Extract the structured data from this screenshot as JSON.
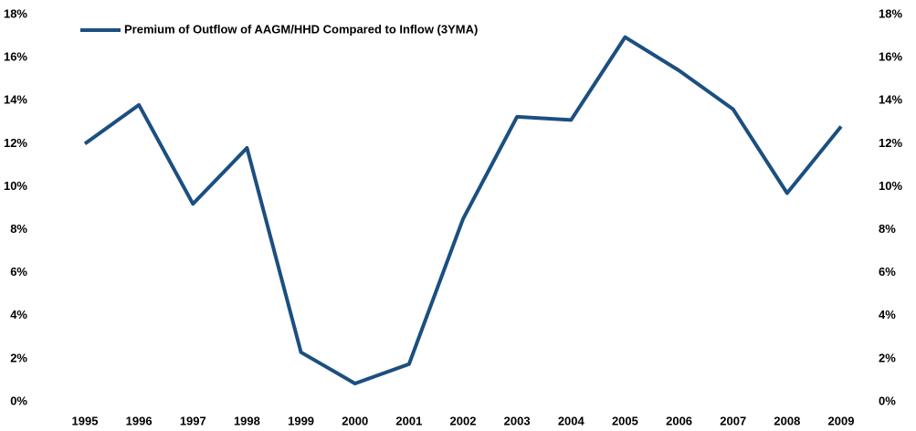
{
  "chart_data": {
    "type": "line",
    "categories": [
      "1995",
      "1996",
      "1997",
      "1998",
      "1999",
      "2000",
      "2001",
      "2002",
      "2003",
      "2004",
      "2005",
      "2006",
      "2007",
      "2008",
      "2009"
    ],
    "series": [
      {
        "name": "Premium of Outflow of AAGM/HHD Compared to Inflow (3YMA)",
        "color": "#1b4f80",
        "values": [
          12.0,
          13.8,
          9.2,
          11.8,
          2.3,
          0.85,
          1.75,
          8.5,
          13.25,
          13.1,
          16.95,
          15.4,
          13.6,
          9.7,
          12.8
        ]
      }
    ],
    "ylim": [
      0,
      18
    ],
    "yticks": [
      {
        "value": 0,
        "label": "0%"
      },
      {
        "value": 2,
        "label": "2%"
      },
      {
        "value": 4,
        "label": "4%"
      },
      {
        "value": 6,
        "label": "6%"
      },
      {
        "value": 8,
        "label": "8%"
      },
      {
        "value": 10,
        "label": "10%"
      },
      {
        "value": 12,
        "label": "12%"
      },
      {
        "value": 14,
        "label": "14%"
      },
      {
        "value": 16,
        "label": "16%"
      },
      {
        "value": 18,
        "label": "18%"
      }
    ],
    "y2lim": [
      0,
      18
    ],
    "y2ticks": [
      {
        "value": 0,
        "label": "0%"
      },
      {
        "value": 2,
        "label": "2%"
      },
      {
        "value": 4,
        "label": "4%"
      },
      {
        "value": 6,
        "label": "6%"
      },
      {
        "value": 8,
        "label": "8%"
      },
      {
        "value": 10,
        "label": "10%"
      },
      {
        "value": 12,
        "label": "12%"
      },
      {
        "value": 14,
        "label": "14%"
      },
      {
        "value": 16,
        "label": "16%"
      },
      {
        "value": 18,
        "label": "18%"
      }
    ],
    "grid": false,
    "legend": "top-left"
  }
}
